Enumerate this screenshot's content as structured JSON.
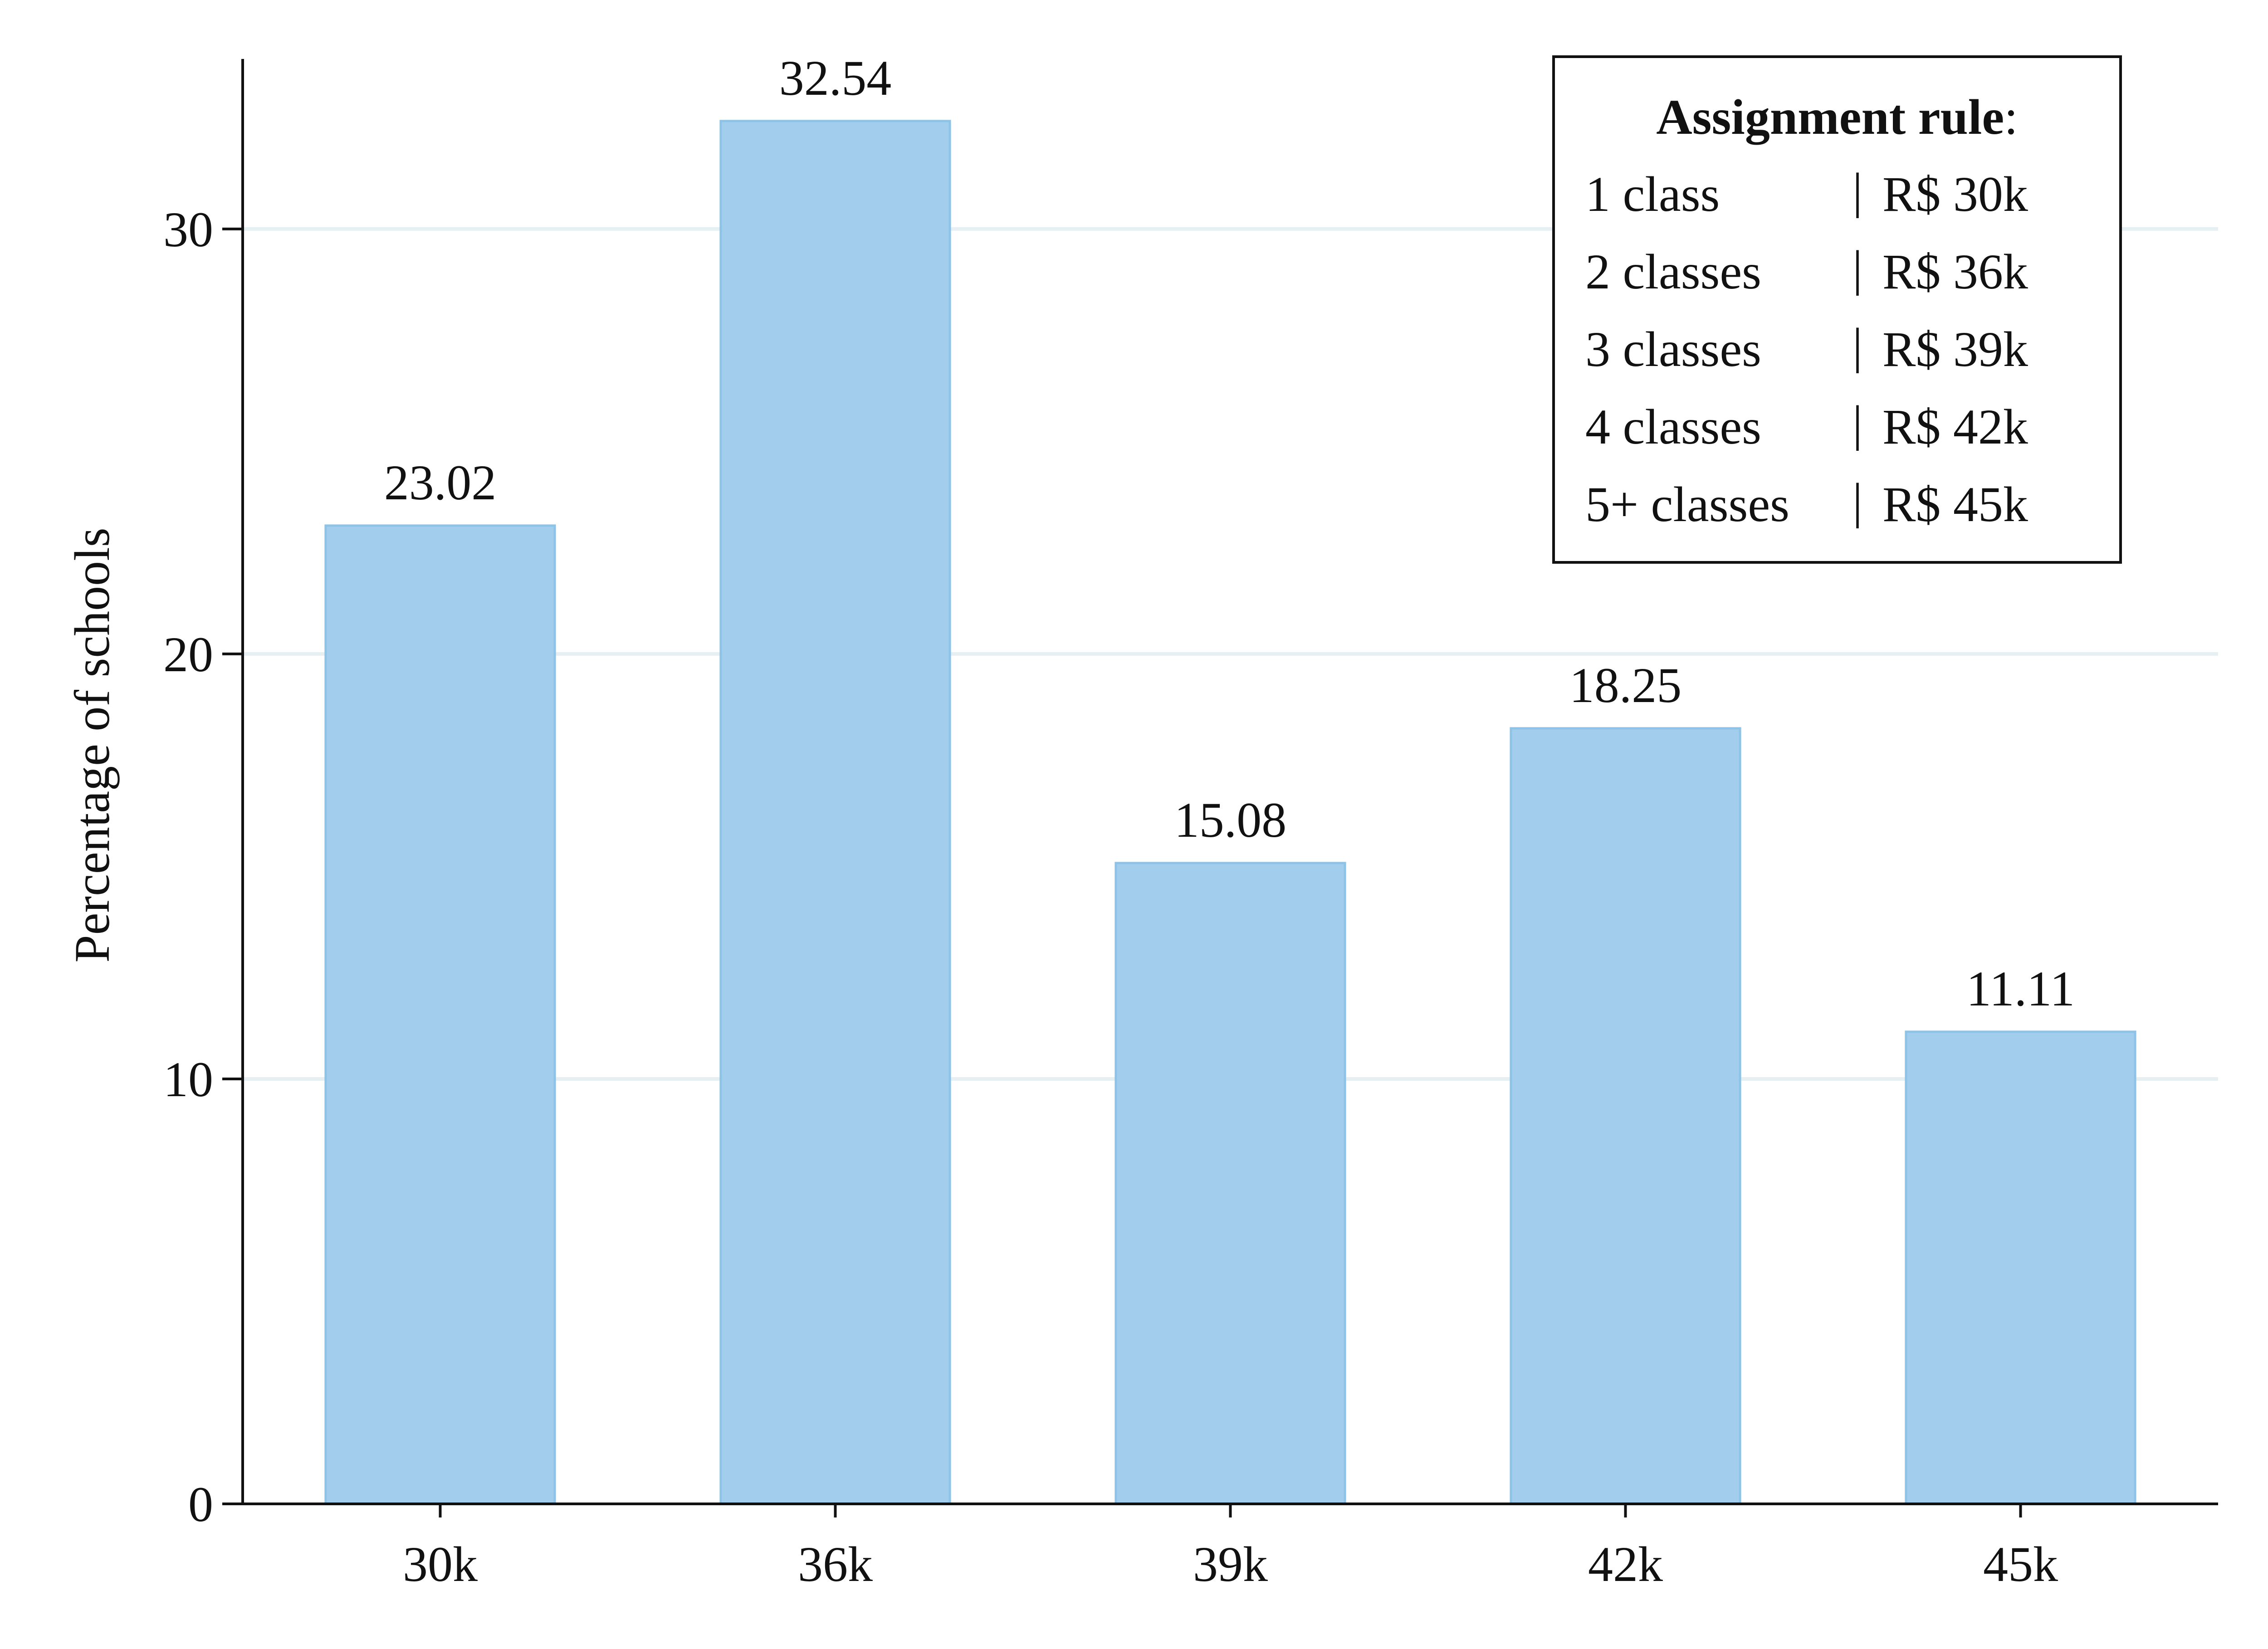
{
  "chart_data": {
    "type": "bar",
    "title": "",
    "xlabel": "",
    "ylabel": "Percentage of schools",
    "categories": [
      "30k",
      "36k",
      "39k",
      "42k",
      "45k"
    ],
    "values": [
      23.02,
      32.54,
      15.08,
      18.25,
      11.11
    ],
    "value_labels": [
      "23.02",
      "32.54",
      "15.08",
      "18.25",
      "11.11"
    ],
    "ylim": [
      0,
      34
    ],
    "yticks": [
      0,
      10,
      20,
      30
    ],
    "ytick_labels": [
      "0",
      "10",
      "20",
      "30"
    ],
    "grid": "horizontal",
    "bar_color": "#a3cdec",
    "bar_edge_color": "#8ec3e8",
    "grid_color": "#e6f0f2",
    "legend": {
      "placement": "top-right",
      "title": "Assignment rule",
      "title_suffix": ":",
      "rows": [
        {
          "classes": "1 class",
          "separator": "|",
          "amount": "R$ 30k"
        },
        {
          "classes": "2 classes",
          "separator": "|",
          "amount": "R$ 36k"
        },
        {
          "classes": "3 classes",
          "separator": "|",
          "amount": "R$ 39k"
        },
        {
          "classes": "4 classes",
          "separator": "|",
          "amount": "R$ 42k"
        },
        {
          "classes": "5+ classes",
          "separator": "|",
          "amount": "R$ 45k"
        }
      ]
    }
  }
}
